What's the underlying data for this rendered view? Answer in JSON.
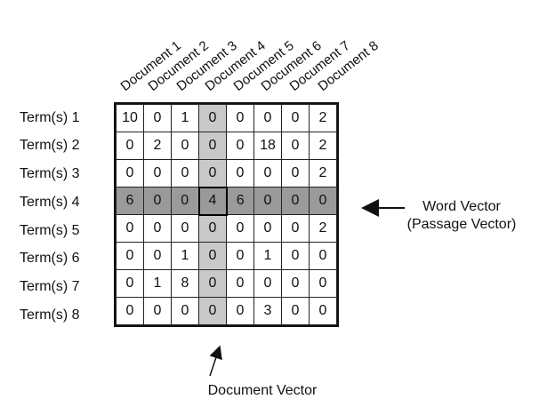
{
  "documents": [
    "Document 1",
    "Document 2",
    "Document 3",
    "Document 4",
    "Document 5",
    "Document 6",
    "Document 7",
    "Document 8"
  ],
  "terms": [
    "Term(s) 1",
    "Term(s) 2",
    "Term(s) 3",
    "Term(s) 4",
    "Term(s) 5",
    "Term(s) 6",
    "Term(s) 7",
    "Term(s) 8"
  ],
  "matrix": [
    [
      "10",
      "0",
      "1",
      "0",
      "0",
      "0",
      "0",
      "2"
    ],
    [
      "0",
      "2",
      "0",
      "0",
      "0",
      "18",
      "0",
      "2"
    ],
    [
      "0",
      "0",
      "0",
      "0",
      "0",
      "0",
      "0",
      "2"
    ],
    [
      "6",
      "0",
      "0",
      "4",
      "6",
      "0",
      "0",
      "0"
    ],
    [
      "0",
      "0",
      "0",
      "0",
      "0",
      "0",
      "0",
      "2"
    ],
    [
      "0",
      "0",
      "1",
      "0",
      "0",
      "1",
      "0",
      "0"
    ],
    [
      "0",
      "1",
      "8",
      "0",
      "0",
      "0",
      "0",
      "0"
    ],
    [
      "0",
      "0",
      "0",
      "0",
      "0",
      "3",
      "0",
      "0"
    ]
  ],
  "highlight": {
    "row_index": 3,
    "column_index": 3,
    "row_color": "#9a9a9a",
    "column_color": "#c9c9c9"
  },
  "callouts": {
    "word_vector_line1": "Word Vector",
    "word_vector_line2": "(Passage Vector)",
    "document_vector": "Document Vector"
  }
}
